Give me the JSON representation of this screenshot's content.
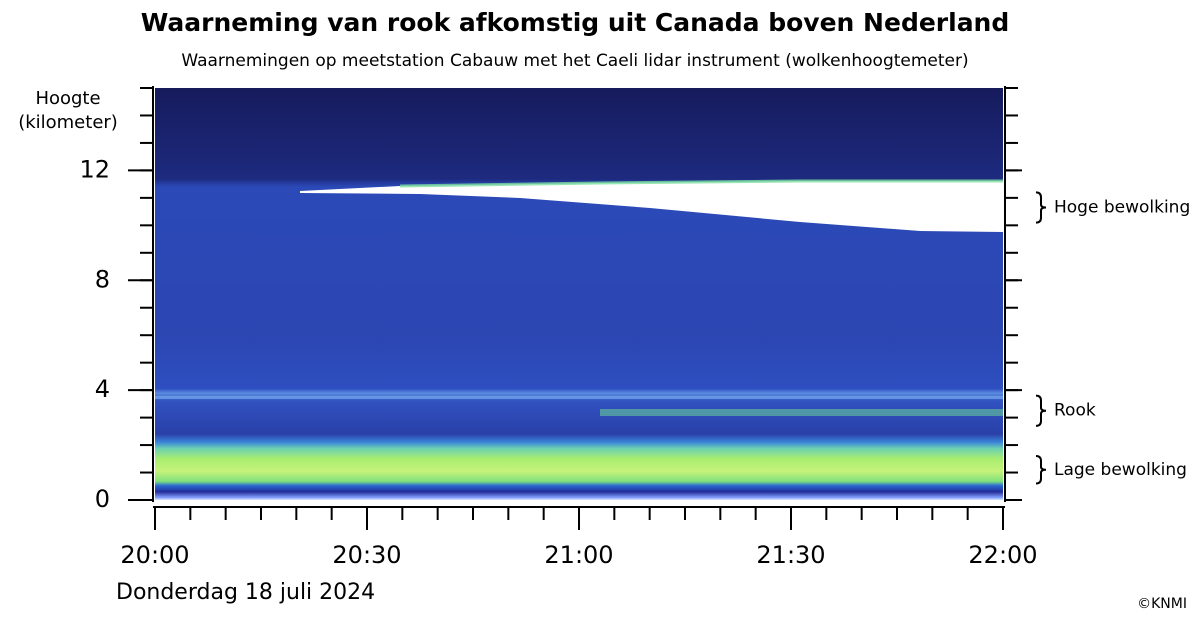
{
  "chart_data": {
    "type": "lidar",
    "title": "Waarneming van rook afkomstig uit Canada boven Nederland",
    "subtitle": "Waarnemingen op meetstation Cabauw met het Caeli lidar instrument (wolkenhoogtemeter)",
    "y_label": [
      "Hoogte",
      "(kilometer)"
    ],
    "ylim": [
      0,
      15
    ],
    "yticks": [
      0,
      4,
      8,
      12
    ],
    "yminor_divisions": 4,
    "xticks": [
      "20:00",
      "20:30",
      "21:00",
      "21:30",
      "22:00"
    ],
    "xminor_divisions": 6,
    "x_label": "Donderdag 18 juli 2024",
    "annotations": [
      {
        "text": "Hoge bewolking",
        "range": [
          10.1,
          11.2
        ]
      },
      {
        "text": "Rook",
        "range": [
          2.7,
          3.8
        ]
      },
      {
        "text": "Lage bewolking",
        "range": [
          0.6,
          1.6
        ]
      }
    ],
    "credit": "©KNMI"
  }
}
